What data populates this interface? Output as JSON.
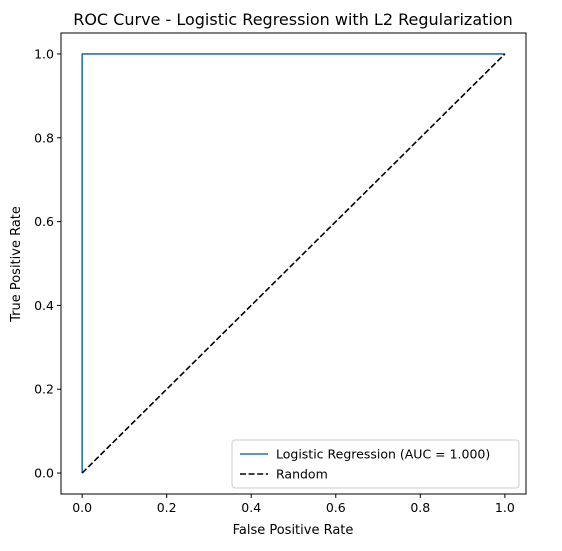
{
  "chart_data": {
    "type": "line",
    "title": "ROC Curve - Logistic Regression with L2 Regularization",
    "xlabel": "False Positive Rate",
    "ylabel": "True Positive Rate",
    "xlim": [
      -0.05,
      1.05
    ],
    "ylim": [
      -0.05,
      1.05
    ],
    "xticks": [
      0.0,
      0.2,
      0.4,
      0.6,
      0.8,
      1.0
    ],
    "yticks": [
      0.0,
      0.2,
      0.4,
      0.6,
      0.8,
      1.0
    ],
    "xtick_labels": [
      "0.0",
      "0.2",
      "0.4",
      "0.6",
      "0.8",
      "1.0"
    ],
    "ytick_labels": [
      "0.0",
      "0.2",
      "0.4",
      "0.6",
      "0.8",
      "1.0"
    ],
    "grid": false,
    "legend_position": "lower-right",
    "series": [
      {
        "name": "Logistic Regression (AUC = 1.000)",
        "color": "#1f77b4",
        "style": "solid",
        "x": [
          0.0,
          0.0,
          0.01,
          1.0
        ],
        "y": [
          0.0,
          1.0,
          1.0,
          1.0
        ]
      },
      {
        "name": "Random",
        "color": "#000000",
        "style": "dashed",
        "x": [
          0.0,
          1.0
        ],
        "y": [
          0.0,
          1.0
        ]
      }
    ]
  }
}
